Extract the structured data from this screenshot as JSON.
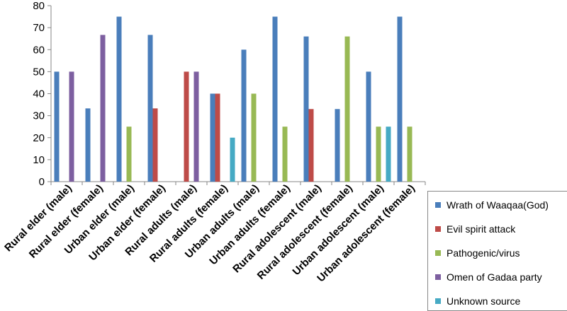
{
  "chart_data": {
    "type": "bar",
    "title": "",
    "xlabel": "",
    "ylabel": "",
    "ylim": [
      0,
      80
    ],
    "yticks": [
      0,
      10,
      20,
      30,
      40,
      50,
      60,
      70,
      80
    ],
    "grid": false,
    "legend_position": "right",
    "categories": [
      "Rural elder (male)",
      "Rural elder (female)",
      "Urban elder (male)",
      "Urban elder (female)",
      "Rural adults (male)",
      "Rural adults (female)",
      "Urban adults (male)",
      "Urban adults (female)",
      "Rural adolescent (male)",
      "Rural adolescent (female)",
      "Urban adolescent (male)",
      "Urban adolescent (female)"
    ],
    "series": [
      {
        "name": "Wrath of Waaqaa(God)",
        "color": "#4a7ebb",
        "values": [
          50,
          33.3,
          75,
          66.7,
          0,
          40,
          60,
          75,
          66,
          33,
          50,
          75
        ]
      },
      {
        "name": "Evil spirit attack",
        "color": "#be4b48",
        "values": [
          0,
          0,
          0,
          33.3,
          50,
          40,
          0,
          0,
          33,
          0,
          0,
          0
        ]
      },
      {
        "name": "Pathogenic/virus",
        "color": "#98b954",
        "values": [
          0,
          0,
          25,
          0,
          0,
          0,
          40,
          25,
          0,
          66,
          25,
          25
        ]
      },
      {
        "name": "Omen of Gadaa party",
        "color": "#7d5fa0",
        "values": [
          50,
          66.7,
          0,
          0,
          50,
          0,
          0,
          0,
          0,
          0,
          0,
          0
        ]
      },
      {
        "name": "Unknown source",
        "color": "#46aac4",
        "values": [
          0,
          0,
          0,
          0,
          0,
          20,
          0,
          0,
          0,
          0,
          25,
          0
        ]
      }
    ]
  }
}
